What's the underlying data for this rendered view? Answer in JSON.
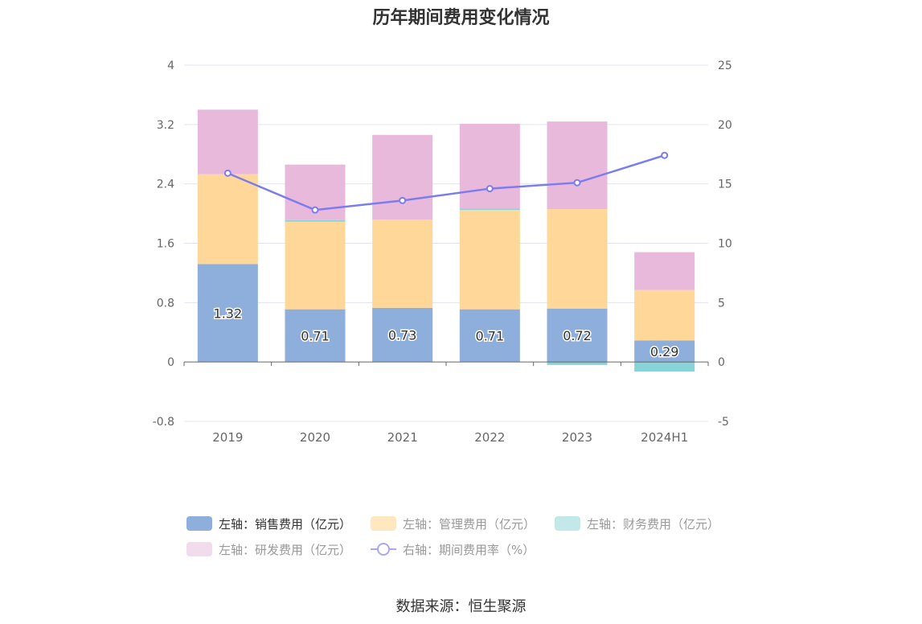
{
  "title": "历年期间费用变化情况",
  "source": "数据来源：恒生聚源",
  "legend": [
    {
      "label": "左轴：销售费用（亿元）",
      "color": "#8eaedb",
      "marker": "box"
    },
    {
      "label": "左轴：管理费用（亿元）",
      "color": "#ffe8bf",
      "marker": "box"
    },
    {
      "label": "左轴：财务费用（亿元）",
      "color": "#c3e8ea",
      "marker": "box"
    },
    {
      "label": "左轴：研发费用（亿元）",
      "color": "#f0dcec",
      "marker": "box"
    },
    {
      "label": "右轴：期间费用率（%）",
      "color": "#a9a7f4",
      "marker": "line"
    }
  ],
  "chart_data": {
    "type": "bar",
    "stacked": true,
    "categories": [
      "2019",
      "2020",
      "2021",
      "2022",
      "2023",
      "2024H1"
    ],
    "left_axis": {
      "min": -0.8,
      "max": 4,
      "ticks": [
        "-0.8",
        "0",
        "0.8",
        "1.6",
        "2.4",
        "3.2",
        "4"
      ]
    },
    "right_axis": {
      "min": -5,
      "max": 25,
      "ticks": [
        "-5",
        "0",
        "5",
        "10",
        "15",
        "20",
        "25"
      ]
    },
    "grid": true,
    "legend_position": "bottom",
    "series": [
      {
        "name": "左轴：销售费用（亿元）",
        "axis": "left",
        "color": "#8eaedb",
        "values": [
          1.32,
          0.71,
          0.73,
          0.71,
          0.72,
          0.29
        ],
        "labels": [
          "1.32",
          "0.71",
          "0.73",
          "0.71",
          "0.72",
          "0.29"
        ]
      },
      {
        "name": "左轴：管理费用（亿元）",
        "axis": "left",
        "color": "#ffd899",
        "values": [
          1.21,
          1.18,
          1.19,
          1.34,
          1.34,
          0.68
        ]
      },
      {
        "name": "左轴：财务费用（亿元）",
        "axis": "left",
        "color": "#87d4d8",
        "values": [
          0.0,
          0.02,
          0.0,
          0.02,
          -0.04,
          -0.13
        ]
      },
      {
        "name": "左轴：研发费用（亿元）",
        "axis": "left",
        "color": "#e8b9da",
        "values": [
          0.87,
          0.75,
          1.14,
          1.14,
          1.18,
          0.51
        ]
      },
      {
        "name": "右轴：期间费用率（%）",
        "axis": "right",
        "type": "line",
        "color": "#7b7cf0",
        "values": [
          15.9,
          12.8,
          13.6,
          14.6,
          15.1,
          17.4
        ]
      }
    ]
  }
}
